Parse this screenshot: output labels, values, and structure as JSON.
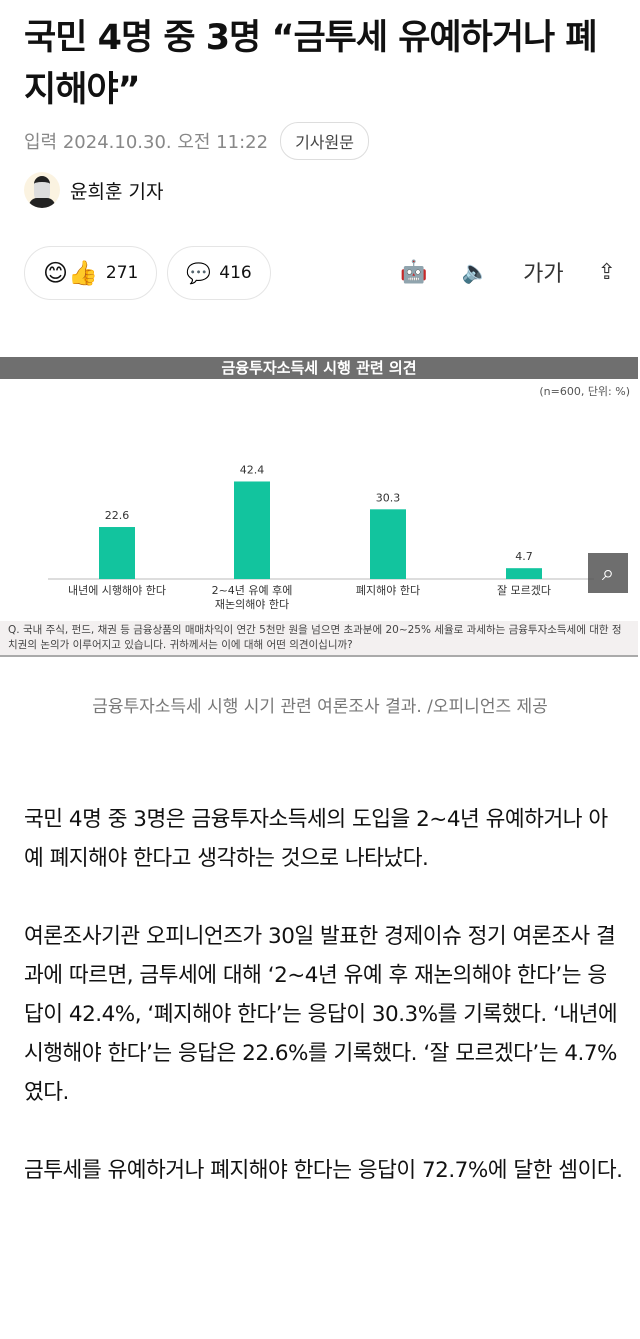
{
  "article": {
    "title": "국민 4명 중 3명 “금투세 유예하거나 폐지해야”",
    "date": "입력 2024.10.30. 오전 11:22",
    "original_button": "기사원문",
    "author": "윤희훈 기자",
    "reactions": "271",
    "comments": "416",
    "font_size_label": "가가",
    "caption": "금융투자소득세 시행 시기 관련 여론조사 결과. /오피니언즈 제공",
    "paragraphs": [
      "국민 4명 중 3명은 금융투자소득세의 도입을 2~4년 유예하거나 아예 폐지해야 한다고 생각하는 것으로 나타났다.",
      "여론조사기관 오피니언즈가 30일 발표한 경제이슈 정기 여론조사 결과에 따르면, 금투세에 대해 ‘2~4년 유예 후 재논의해야 한다’는 응답이 42.4%, ‘폐지해야 한다’는 응답이 30.3%를 기록했다. ‘내년에 시행해야 한다’는 응답은 22.6%를 기록했다. ‘잘 모르겠다’는 4.7%였다.",
      "금투세를 유예하거나 폐지해야 한다는 응답이 72.7%에 달한 셈이다."
    ]
  },
  "icons": [
    "reaction-emoji-icon",
    "comment-icon",
    "ai-summary-robot-icon",
    "speaker-icon",
    "font-size-icon",
    "share-icon",
    "image-zoom-icon"
  ],
  "chart_data": {
    "type": "bar",
    "title": "금융투자소득세 시행 관련 의견",
    "subtitle": "(n=600, 단위: %)",
    "categories": [
      "내년에 시행해야 한다",
      "2~4년 유예 후에 재논의해야 한다",
      "폐지해야 한다",
      "잘 모르겠다"
    ],
    "values": [
      22.6,
      42.4,
      30.3,
      4.7
    ],
    "bar_color": "#12c49e",
    "question": "Q. 국내 주식, 펀드, 채권 등 금융상품의 매매차익이 연간 5천만 원을 넘으면 초과분에 20~25% 세율로 과세하는 금융투자소득세에 대한 정치권의 논의가 이루어지고 있습니다. 귀하께서는 이에 대해 어떤 의견이십니까?"
  }
}
